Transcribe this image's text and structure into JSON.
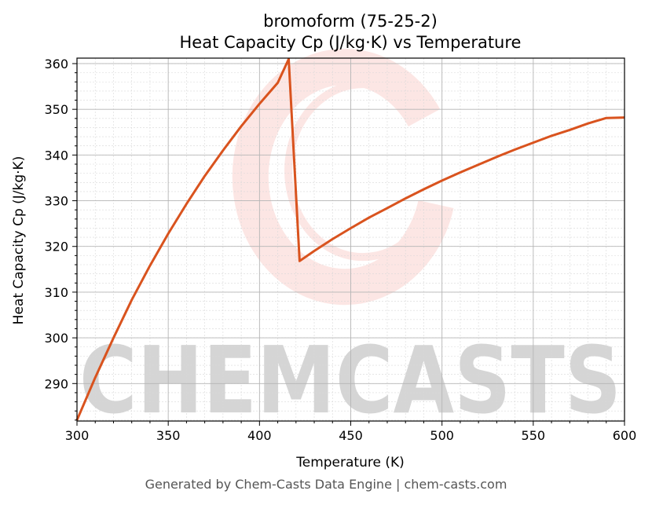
{
  "chart_data": {
    "type": "line",
    "title": "bromoform (75-25-2)",
    "subtitle": "Heat Capacity Cp (J/kg·K) vs Temperature",
    "xlabel": "Temperature (K)",
    "ylabel": "Heat Capacity Cp (J/kg·K)",
    "xlim": [
      300,
      600
    ],
    "ylim": [
      281.8,
      361.2
    ],
    "xticks": [
      300,
      350,
      400,
      450,
      500,
      550,
      600
    ],
    "yticks": [
      290,
      300,
      310,
      320,
      330,
      340,
      350,
      360
    ],
    "grid": true,
    "legend": "none",
    "series": [
      {
        "color": "#d9531e",
        "x": [
          300,
          310,
          320,
          330,
          340,
          350,
          360,
          370,
          380,
          390,
          400,
          410,
          416,
          422,
          430,
          440,
          450,
          460,
          470,
          480,
          490,
          500,
          510,
          520,
          530,
          540,
          550,
          560,
          570,
          580,
          590,
          600
        ],
        "y": [
          282.0,
          291.3,
          300.0,
          308.3,
          315.8,
          322.8,
          329.3,
          335.4,
          341.0,
          346.3,
          351.2,
          355.8,
          361.0,
          316.8,
          319.0,
          321.6,
          324.0,
          326.3,
          328.4,
          330.5,
          332.5,
          334.4,
          336.2,
          337.9,
          339.6,
          341.2,
          342.7,
          344.2,
          345.5,
          346.9,
          348.1,
          348.2
        ]
      }
    ],
    "watermark": "CHEMCASTS"
  },
  "footer": "Generated by Chem-Casts Data Engine | chem-casts.com"
}
